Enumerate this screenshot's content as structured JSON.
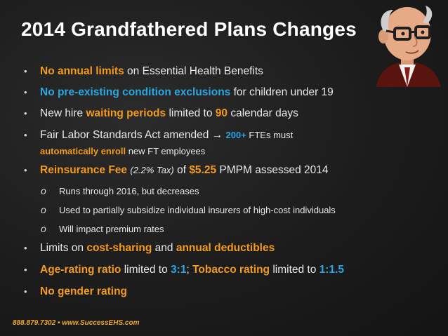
{
  "slide": {
    "title": "2014 Grandfathered Plans Changes",
    "footer": "888.879.7302 • www.SuccessEHS.com",
    "bullet_marker": "•",
    "sub_marker": "o",
    "colors": {
      "orange": "#f39a1f",
      "blue": "#2aa6e3",
      "text": "#e9e9e9",
      "background": "#1c1c1c"
    },
    "avatar_icon": "elderly-man-with-glasses-icon",
    "bullets": {
      "b1": {
        "hl": "No annual limits",
        "rest": " on Essential Health Benefits"
      },
      "b2": {
        "hl": "No pre-existing condition exclusions",
        "rest": " for children under 19"
      },
      "b3": {
        "pre": "New hire ",
        "hl": "waiting periods",
        "mid": " limited to ",
        "num": "90",
        "rest": " calendar days"
      },
      "b4": {
        "pre": "Fair Labor Standards Act amended ",
        "arrow": "→",
        "num": "200+",
        "mid": " FTEs must",
        "hl": "automatically enroll",
        "rest": " new FT employees"
      },
      "b5": {
        "hl": "Reinsurance Fee",
        "tax": "(2.2% Tax)",
        "mid": " of ",
        "num": "$5.25",
        "rest": " PMPM assessed 2014"
      },
      "subs": [
        "Runs through 2016, but decreases",
        "Used to partially subsidize individual insurers of high-cost individuals",
        "Will impact premium rates"
      ],
      "b6": {
        "pre": "Limits on ",
        "hl1": "cost-sharing",
        "mid": " and ",
        "hl2": "annual deductibles"
      },
      "b7": {
        "hl1": "Age-rating ratio",
        "mid1": " limited to ",
        "num1": "3:1",
        "sep": ";",
        "hl2": "Tobacco rating",
        "mid2": " limited to ",
        "num2": "1:1.5"
      },
      "b8": {
        "hl": "No gender rating"
      }
    }
  }
}
